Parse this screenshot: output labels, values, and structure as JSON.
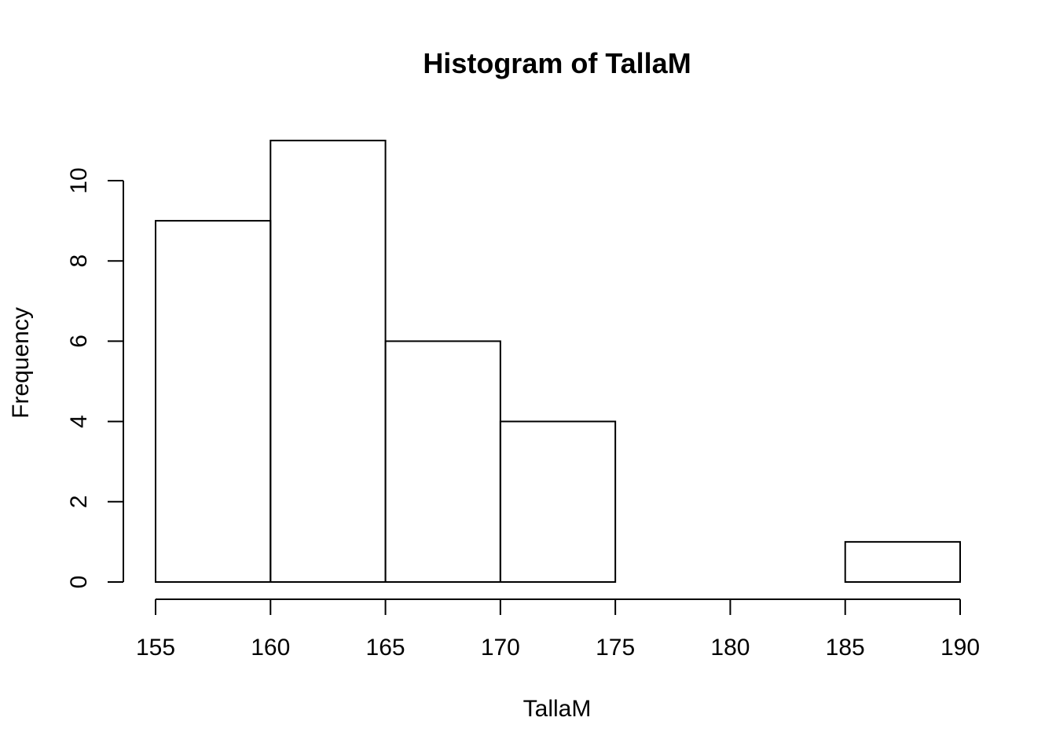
{
  "chart_data": {
    "type": "bar",
    "title": "Histogram of TallaM",
    "xlabel": "TallaM",
    "ylabel": "Frequency",
    "bins": [
      {
        "from": 155,
        "to": 160,
        "count": 9
      },
      {
        "from": 160,
        "to": 165,
        "count": 11
      },
      {
        "from": 165,
        "to": 170,
        "count": 6
      },
      {
        "from": 170,
        "to": 175,
        "count": 4
      },
      {
        "from": 175,
        "to": 180,
        "count": 0
      },
      {
        "from": 180,
        "to": 185,
        "count": 0
      },
      {
        "from": 185,
        "to": 190,
        "count": 1
      }
    ],
    "xlim": [
      155,
      190
    ],
    "ylim": [
      0,
      11
    ],
    "x_ticks": [
      "155",
      "160",
      "165",
      "170",
      "175",
      "180",
      "185",
      "190"
    ],
    "y_ticks": [
      "0",
      "2",
      "4",
      "6",
      "8",
      "10"
    ],
    "grid": false,
    "legend": "none",
    "bar_fill": "#ffffff",
    "bar_stroke": "#000000"
  }
}
